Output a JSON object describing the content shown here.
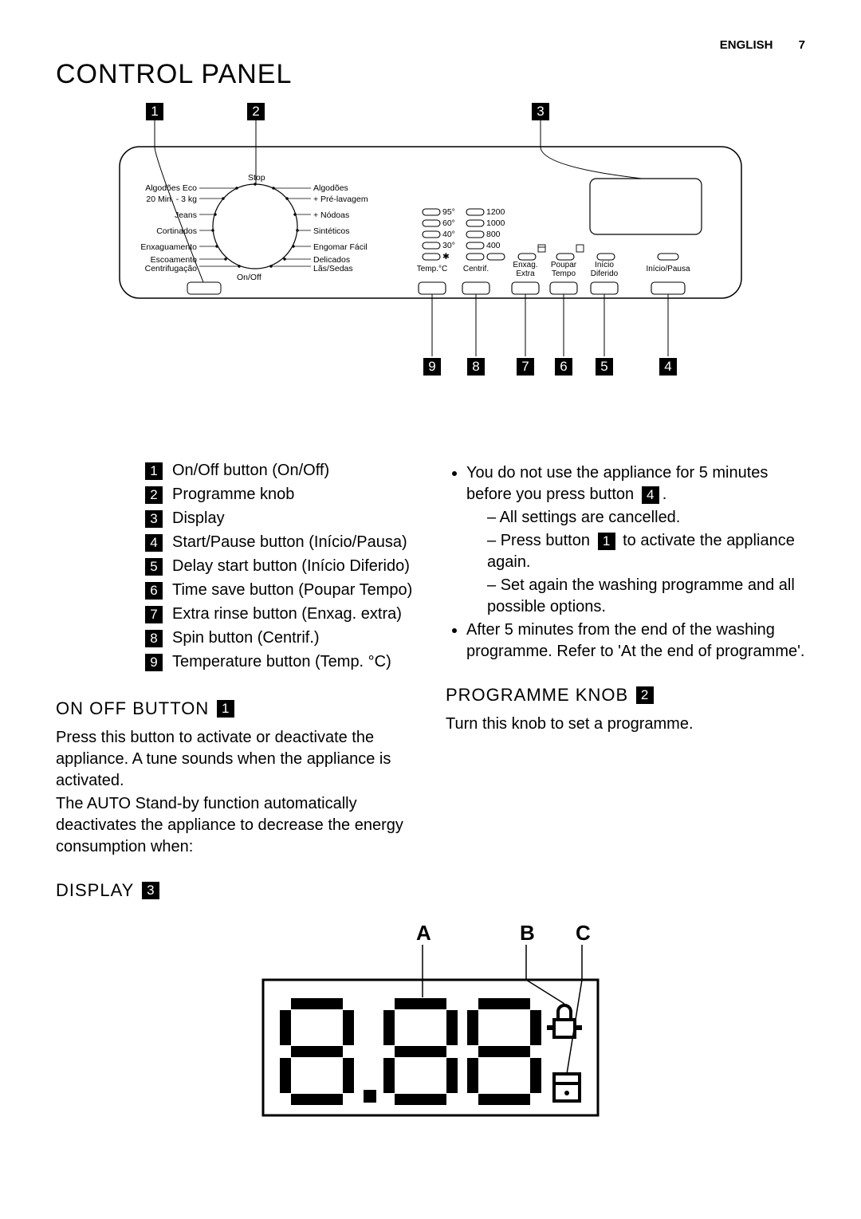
{
  "header": {
    "lang": "ENGLISH",
    "page_no": "7"
  },
  "title": "CONTROL PANEL",
  "panel": {
    "callouts_top": [
      "1",
      "2",
      "3"
    ],
    "callouts_bottom": [
      "9",
      "8",
      "7",
      "6",
      "5",
      "4"
    ],
    "knob_left_labels": [
      "Algodões Eco",
      "20 Min. - 3 kg",
      "Jeans",
      "Cortinados",
      "Enxaguamento",
      "Escoamento",
      "Centrifugação"
    ],
    "knob_right_labels": [
      "Algodões",
      "+ Pré-lavagem",
      "+ Nódoas",
      "Sintéticos",
      "Engomar Fácil",
      "Delicados",
      "Lãs/Sedas"
    ],
    "knob_top": "Stop",
    "knob_bottom": "On/Off",
    "temp_rows": [
      "95°",
      "60°",
      "40°",
      "30°"
    ],
    "temp_last": "✱",
    "spin_rows": [
      "1200",
      "1000",
      "800",
      "400"
    ],
    "btn_labels": {
      "temp": "Temp.°C",
      "centrif": "Centrif.",
      "enxag": "Enxag.\nExtra",
      "poupar": "Poupar\nTempo",
      "inicio_dif": "Início\nDiferido",
      "inicio_pausa": "Início/Pausa"
    },
    "colors": {
      "line": "#000000",
      "bg": "#ffffff"
    }
  },
  "legend": [
    {
      "n": "1",
      "text": "On/Off button (On/Off)"
    },
    {
      "n": "2",
      "text": "Programme knob"
    },
    {
      "n": "3",
      "text": "Display"
    },
    {
      "n": "4",
      "text": "Start/Pause button (Início/Pausa)"
    },
    {
      "n": "5",
      "text": "Delay start button (Início Diferido)"
    },
    {
      "n": "6",
      "text": "Time save button (Poupar Tempo)"
    },
    {
      "n": "7",
      "text": "Extra rinse button (Enxag. extra)"
    },
    {
      "n": "8",
      "text": "Spin button (Centrif.)"
    },
    {
      "n": "9",
      "text": "Temperature button (Temp. °C)"
    }
  ],
  "on_off": {
    "heading": "ON OFF BUTTON",
    "chip": "1",
    "para1": "Press this button to activate or deactivate the appliance. A tune sounds when the appliance is activated.",
    "para2": "The AUTO Stand-by function automatically deactivates the appliance to decrease the energy consumption when:"
  },
  "right_col": {
    "b1_pre": "You do not use the appliance for 5 minutes before you press button",
    "b1_chip": "4",
    "b1_post": ".",
    "b1_sub_a": "All settings are cancelled.",
    "b1_sub_b_pre": "Press button",
    "b1_sub_b_chip": "1",
    "b1_sub_b_post": "to activate the appliance again.",
    "b1_sub_c": "Set again the washing programme and all possible options.",
    "b2": "After 5 minutes from the end of the washing programme. Refer to 'At the end of programme'.",
    "prog_heading": "PROGRAMME KNOB",
    "prog_chip": "2",
    "prog_text": "Turn this knob to set a programme."
  },
  "display_section": {
    "heading": "DISPLAY",
    "chip": "3",
    "letters": [
      "A",
      "B",
      "C"
    ],
    "digits": "8.88"
  }
}
